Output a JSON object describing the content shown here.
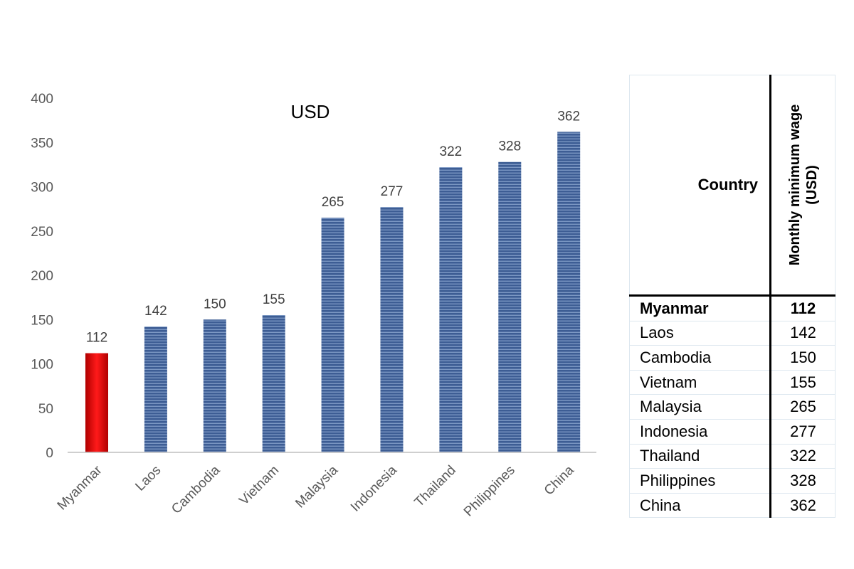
{
  "chart_data": {
    "type": "bar",
    "title": "USD",
    "categories": [
      "Myanmar",
      "Laos",
      "Cambodia",
      "Vietnam",
      "Malaysia",
      "Indonesia",
      "Thailand",
      "Philippines",
      "China"
    ],
    "values": [
      112,
      142,
      150,
      155,
      265,
      277,
      322,
      328,
      362
    ],
    "ylim": [
      0,
      400
    ],
    "yticks": [
      0,
      50,
      100,
      150,
      200,
      250,
      300,
      350,
      400
    ],
    "xlabel": "",
    "ylabel": "",
    "grid": false,
    "colors": {
      "highlight": "#e00000",
      "bars": "#3d5d94"
    }
  },
  "table": {
    "headers": {
      "country": "Country",
      "wage": "Monthly minimum wage (USD)"
    },
    "rows": [
      {
        "country": "Myanmar",
        "wage": "112",
        "bold": true
      },
      {
        "country": "Laos",
        "wage": "142"
      },
      {
        "country": "Cambodia",
        "wage": "150"
      },
      {
        "country": "Vietnam",
        "wage": "155"
      },
      {
        "country": "Malaysia",
        "wage": "265"
      },
      {
        "country": "Indonesia",
        "wage": "277"
      },
      {
        "country": "Thailand",
        "wage": "322"
      },
      {
        "country": "Philippines",
        "wage": "328"
      },
      {
        "country": "China",
        "wage": "362"
      }
    ]
  }
}
